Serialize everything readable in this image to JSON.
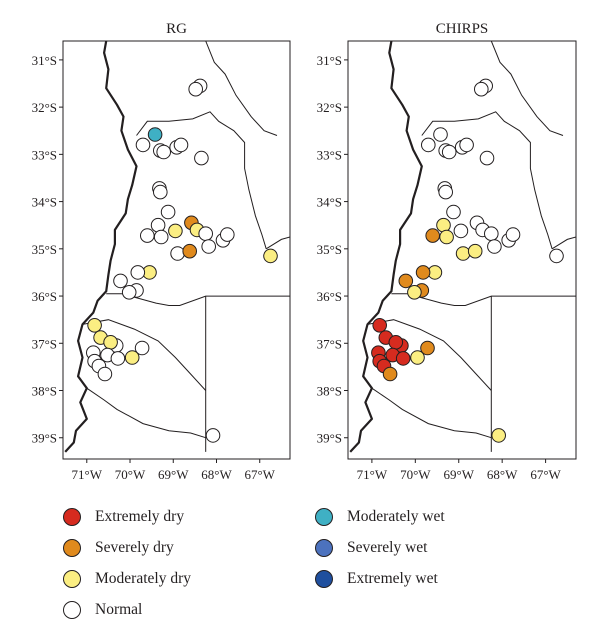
{
  "panels": [
    {
      "title": "RG",
      "points": [
        {
          "lon": -68.38,
          "lat": -31.55,
          "cat": "normal"
        },
        {
          "lon": -68.48,
          "lat": -31.62,
          "cat": "normal"
        },
        {
          "lon": -69.42,
          "lat": -32.58,
          "cat": "moderately_wet"
        },
        {
          "lon": -69.7,
          "lat": -32.8,
          "cat": "normal"
        },
        {
          "lon": -69.3,
          "lat": -32.92,
          "cat": "normal"
        },
        {
          "lon": -69.22,
          "lat": -32.95,
          "cat": "normal"
        },
        {
          "lon": -68.92,
          "lat": -32.85,
          "cat": "normal"
        },
        {
          "lon": -68.82,
          "lat": -32.8,
          "cat": "normal"
        },
        {
          "lon": -68.35,
          "lat": -33.08,
          "cat": "normal"
        },
        {
          "lon": -69.32,
          "lat": -33.72,
          "cat": "normal"
        },
        {
          "lon": -69.3,
          "lat": -33.8,
          "cat": "normal"
        },
        {
          "lon": -69.12,
          "lat": -34.22,
          "cat": "normal"
        },
        {
          "lon": -69.35,
          "lat": -34.5,
          "cat": "normal"
        },
        {
          "lon": -69.6,
          "lat": -34.72,
          "cat": "normal"
        },
        {
          "lon": -69.28,
          "lat": -34.75,
          "cat": "normal"
        },
        {
          "lon": -68.95,
          "lat": -34.62,
          "cat": "moderately_dry"
        },
        {
          "lon": -68.58,
          "lat": -34.45,
          "cat": "severely_dry"
        },
        {
          "lon": -68.45,
          "lat": -34.6,
          "cat": "moderately_dry"
        },
        {
          "lon": -68.25,
          "lat": -34.68,
          "cat": "normal"
        },
        {
          "lon": -67.85,
          "lat": -34.82,
          "cat": "normal"
        },
        {
          "lon": -67.75,
          "lat": -34.7,
          "cat": "normal"
        },
        {
          "lon": -68.18,
          "lat": -34.95,
          "cat": "normal"
        },
        {
          "lon": -68.9,
          "lat": -35.1,
          "cat": "normal"
        },
        {
          "lon": -68.62,
          "lat": -35.05,
          "cat": "severely_dry"
        },
        {
          "lon": -66.75,
          "lat": -35.15,
          "cat": "moderately_dry"
        },
        {
          "lon": -69.55,
          "lat": -35.5,
          "cat": "moderately_dry"
        },
        {
          "lon": -69.82,
          "lat": -35.5,
          "cat": "normal"
        },
        {
          "lon": -70.22,
          "lat": -35.68,
          "cat": "normal"
        },
        {
          "lon": -69.85,
          "lat": -35.88,
          "cat": "normal"
        },
        {
          "lon": -70.02,
          "lat": -35.92,
          "cat": "normal"
        },
        {
          "lon": -70.82,
          "lat": -36.62,
          "cat": "moderately_dry"
        },
        {
          "lon": -70.68,
          "lat": -36.88,
          "cat": "moderately_dry"
        },
        {
          "lon": -70.32,
          "lat": -37.05,
          "cat": "normal"
        },
        {
          "lon": -70.45,
          "lat": -36.98,
          "cat": "moderately_dry"
        },
        {
          "lon": -69.72,
          "lat": -37.1,
          "cat": "normal"
        },
        {
          "lon": -70.85,
          "lat": -37.2,
          "cat": "normal"
        },
        {
          "lon": -70.52,
          "lat": -37.25,
          "cat": "normal"
        },
        {
          "lon": -70.28,
          "lat": -37.32,
          "cat": "normal"
        },
        {
          "lon": -69.95,
          "lat": -37.3,
          "cat": "moderately_dry"
        },
        {
          "lon": -70.82,
          "lat": -37.38,
          "cat": "normal"
        },
        {
          "lon": -70.72,
          "lat": -37.48,
          "cat": "normal"
        },
        {
          "lon": -70.58,
          "lat": -37.65,
          "cat": "normal"
        },
        {
          "lon": -68.08,
          "lat": -38.95,
          "cat": "normal"
        }
      ]
    },
    {
      "title": "CHIRPS",
      "points": [
        {
          "lon": -68.38,
          "lat": -31.55,
          "cat": "normal"
        },
        {
          "lon": -68.48,
          "lat": -31.62,
          "cat": "normal"
        },
        {
          "lon": -69.42,
          "lat": -32.58,
          "cat": "normal"
        },
        {
          "lon": -69.7,
          "lat": -32.8,
          "cat": "normal"
        },
        {
          "lon": -69.3,
          "lat": -32.92,
          "cat": "normal"
        },
        {
          "lon": -69.22,
          "lat": -32.95,
          "cat": "normal"
        },
        {
          "lon": -68.92,
          "lat": -32.85,
          "cat": "normal"
        },
        {
          "lon": -68.82,
          "lat": -32.8,
          "cat": "normal"
        },
        {
          "lon": -68.35,
          "lat": -33.08,
          "cat": "normal"
        },
        {
          "lon": -69.32,
          "lat": -33.72,
          "cat": "normal"
        },
        {
          "lon": -69.3,
          "lat": -33.8,
          "cat": "normal"
        },
        {
          "lon": -69.12,
          "lat": -34.22,
          "cat": "normal"
        },
        {
          "lon": -69.35,
          "lat": -34.5,
          "cat": "moderately_dry"
        },
        {
          "lon": -69.6,
          "lat": -34.72,
          "cat": "severely_dry"
        },
        {
          "lon": -69.28,
          "lat": -34.75,
          "cat": "moderately_dry"
        },
        {
          "lon": -68.95,
          "lat": -34.62,
          "cat": "normal"
        },
        {
          "lon": -68.58,
          "lat": -34.45,
          "cat": "normal"
        },
        {
          "lon": -68.45,
          "lat": -34.6,
          "cat": "normal"
        },
        {
          "lon": -68.25,
          "lat": -34.68,
          "cat": "normal"
        },
        {
          "lon": -67.85,
          "lat": -34.82,
          "cat": "normal"
        },
        {
          "lon": -67.75,
          "lat": -34.7,
          "cat": "normal"
        },
        {
          "lon": -68.18,
          "lat": -34.95,
          "cat": "normal"
        },
        {
          "lon": -68.9,
          "lat": -35.1,
          "cat": "moderately_dry"
        },
        {
          "lon": -68.62,
          "lat": -35.05,
          "cat": "moderately_dry"
        },
        {
          "lon": -66.75,
          "lat": -35.15,
          "cat": "normal"
        },
        {
          "lon": -69.55,
          "lat": -35.5,
          "cat": "moderately_dry"
        },
        {
          "lon": -69.82,
          "lat": -35.5,
          "cat": "severely_dry"
        },
        {
          "lon": -70.22,
          "lat": -35.68,
          "cat": "severely_dry"
        },
        {
          "lon": -69.85,
          "lat": -35.88,
          "cat": "severely_dry"
        },
        {
          "lon": -70.02,
          "lat": -35.92,
          "cat": "moderately_dry"
        },
        {
          "lon": -70.82,
          "lat": -36.62,
          "cat": "extremely_dry"
        },
        {
          "lon": -70.68,
          "lat": -36.88,
          "cat": "extremely_dry"
        },
        {
          "lon": -70.32,
          "lat": -37.05,
          "cat": "extremely_dry"
        },
        {
          "lon": -70.45,
          "lat": -36.98,
          "cat": "extremely_dry"
        },
        {
          "lon": -69.72,
          "lat": -37.1,
          "cat": "severely_dry"
        },
        {
          "lon": -70.85,
          "lat": -37.2,
          "cat": "extremely_dry"
        },
        {
          "lon": -70.52,
          "lat": -37.25,
          "cat": "extremely_dry"
        },
        {
          "lon": -70.28,
          "lat": -37.32,
          "cat": "extremely_dry"
        },
        {
          "lon": -69.95,
          "lat": -37.3,
          "cat": "moderately_dry"
        },
        {
          "lon": -70.82,
          "lat": -37.38,
          "cat": "extremely_dry"
        },
        {
          "lon": -70.72,
          "lat": -37.48,
          "cat": "extremely_dry"
        },
        {
          "lon": -70.58,
          "lat": -37.65,
          "cat": "severely_dry"
        },
        {
          "lon": -68.08,
          "lat": -38.95,
          "cat": "moderately_dry"
        }
      ]
    }
  ],
  "axes": {
    "lat_ticks": [
      {
        "value": -31,
        "label": "31°S"
      },
      {
        "value": -32,
        "label": "32°S"
      },
      {
        "value": -33,
        "label": "33°S"
      },
      {
        "value": -34,
        "label": "34°S"
      },
      {
        "value": -35,
        "label": "35°S"
      },
      {
        "value": -36,
        "label": "36°S"
      },
      {
        "value": -37,
        "label": "37°S"
      },
      {
        "value": -38,
        "label": "38°S"
      },
      {
        "value": -39,
        "label": "39°S"
      }
    ],
    "lon_ticks": [
      {
        "value": -71,
        "label": "71°W"
      },
      {
        "value": -70,
        "label": "70°W"
      },
      {
        "value": -69,
        "label": "69°W"
      },
      {
        "value": -68,
        "label": "68°W"
      },
      {
        "value": -67,
        "label": "67°W"
      }
    ],
    "lon_range": [
      -71.55,
      -66.3
    ],
    "lat_range": [
      -39.45,
      -30.6
    ]
  },
  "categories": {
    "extremely_dry": {
      "label": "Extremely dry",
      "color": "#d62b1f"
    },
    "severely_dry": {
      "label": "Severely dry",
      "color": "#e08a1d"
    },
    "moderately_dry": {
      "label": "Moderately dry",
      "color": "#fbee82"
    },
    "normal": {
      "label": "Normal",
      "color": "#ffffff"
    },
    "moderately_wet": {
      "label": "Moderately wet",
      "color": "#3fb0c4"
    },
    "severely_wet": {
      "label": "Severely wet",
      "color": "#4c72be"
    },
    "extremely_wet": {
      "label": "Extremely wet",
      "color": "#1f4f9e"
    }
  },
  "legend": {
    "left": [
      "extremely_dry",
      "severely_dry",
      "moderately_dry",
      "normal"
    ],
    "right": [
      "moderately_wet",
      "severely_wet",
      "extremely_wet"
    ]
  },
  "boundaries": {
    "international": [
      [
        -71.5,
        -39.3
      ],
      [
        -71.3,
        -39.1
      ],
      [
        -71.25,
        -38.85
      ],
      [
        -71.0,
        -38.6
      ],
      [
        -71.15,
        -38.25
      ],
      [
        -71.0,
        -37.95
      ],
      [
        -71.2,
        -37.7
      ],
      [
        -71.1,
        -37.3
      ],
      [
        -71.2,
        -36.95
      ],
      [
        -71.1,
        -36.6
      ],
      [
        -70.85,
        -36.35
      ],
      [
        -70.75,
        -36.1
      ],
      [
        -70.55,
        -35.9
      ],
      [
        -70.5,
        -35.55
      ],
      [
        -70.45,
        -35.25
      ],
      [
        -70.35,
        -34.9
      ],
      [
        -70.35,
        -34.6
      ],
      [
        -70.1,
        -34.25
      ],
      [
        -70.05,
        -33.95
      ],
      [
        -69.95,
        -33.65
      ],
      [
        -69.85,
        -33.25
      ],
      [
        -70.05,
        -32.9
      ],
      [
        -70.2,
        -32.5
      ],
      [
        -70.15,
        -32.2
      ],
      [
        -70.3,
        -31.95
      ],
      [
        -70.55,
        -31.6
      ],
      [
        -70.5,
        -31.2
      ],
      [
        -70.6,
        -30.85
      ],
      [
        -70.55,
        -30.6
      ]
    ],
    "provinces": [
      [
        [
          -68.25,
          -30.6
        ],
        [
          -68.05,
          -31.05
        ],
        [
          -67.8,
          -31.3
        ],
        [
          -67.55,
          -31.75
        ],
        [
          -67.2,
          -32.2
        ],
        [
          -66.9,
          -32.5
        ],
        [
          -66.6,
          -32.6
        ]
      ],
      [
        [
          -69.85,
          -32.6
        ],
        [
          -69.6,
          -32.3
        ],
        [
          -69.1,
          -32.3
        ],
        [
          -68.55,
          -32.25
        ],
        [
          -68.15,
          -32.1
        ],
        [
          -67.95,
          -32.3
        ],
        [
          -67.6,
          -32.5
        ],
        [
          -67.35,
          -32.75
        ],
        [
          -67.35,
          -33.3
        ],
        [
          -67.25,
          -33.75
        ],
        [
          -67.1,
          -34.3
        ],
        [
          -66.95,
          -34.7
        ],
        [
          -66.85,
          -35.0
        ]
      ],
      [
        [
          -70.55,
          -35.95
        ],
        [
          -70.2,
          -35.95
        ],
        [
          -69.8,
          -36.05
        ],
        [
          -69.4,
          -36.15
        ],
        [
          -69.1,
          -36.2
        ],
        [
          -68.85,
          -36.2
        ],
        [
          -68.25,
          -36.0
        ],
        [
          -66.3,
          -36.0
        ]
      ],
      [
        [
          -68.25,
          -36.0
        ],
        [
          -68.25,
          -39.3
        ]
      ],
      [
        [
          -71.1,
          -36.6
        ],
        [
          -70.5,
          -36.5
        ],
        [
          -69.9,
          -36.7
        ],
        [
          -69.35,
          -36.95
        ],
        [
          -68.95,
          -37.3
        ],
        [
          -68.6,
          -37.65
        ],
        [
          -68.25,
          -38.0
        ]
      ],
      [
        [
          -71.0,
          -37.95
        ],
        [
          -70.6,
          -38.2
        ],
        [
          -70.3,
          -38.4
        ],
        [
          -69.7,
          -38.7
        ],
        [
          -69.1,
          -38.85
        ],
        [
          -68.6,
          -38.9
        ],
        [
          -68.25,
          -39.0
        ]
      ],
      [
        [
          -66.85,
          -35.0
        ],
        [
          -66.5,
          -34.8
        ],
        [
          -66.3,
          -34.75
        ]
      ]
    ]
  }
}
